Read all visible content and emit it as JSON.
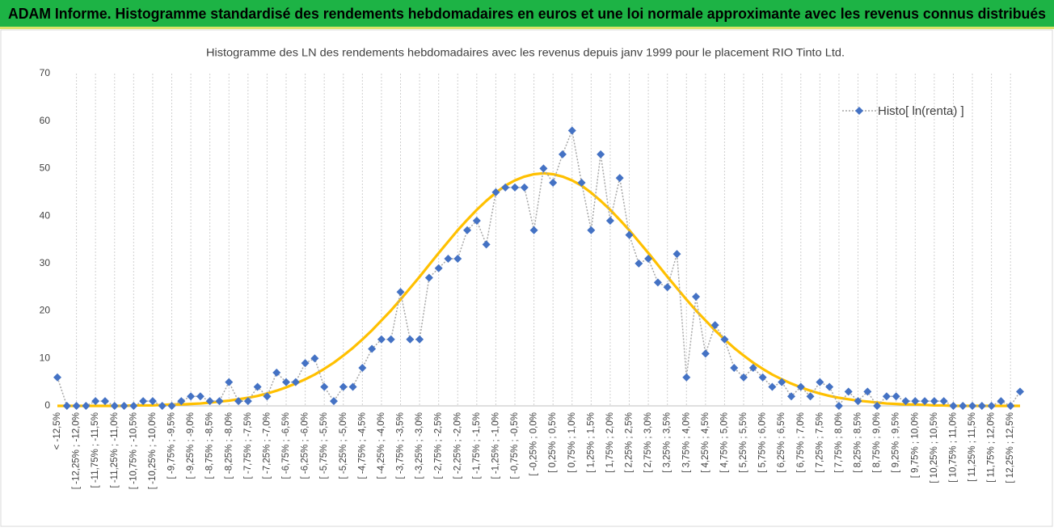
{
  "chart_data": {
    "type": "line",
    "header": "ADAM Informe. Histogramme standardisé des rendements hebdomadaires en euros et une loi normale approximante avec les revenus connus distribués",
    "title": "Histogramme des LN des rendements hebdomadaires avec les revenus depuis janv 1999 pour le placement RIO Tinto Ltd.",
    "categories": [
      "< -12,5%",
      null,
      "[ -12,25% ; -12,0%",
      null,
      "[ -11,75% ; -11,5%",
      null,
      "[ -11,25% ; -11,0%",
      null,
      "[ -10,75% ; -10,5%",
      null,
      "[ -10,25% ; -10,0%",
      null,
      "[ -9,75% ; -9,5%",
      null,
      "[ -9,25% ; -9,0%",
      null,
      "[ -8,75% ; -8,5%",
      null,
      "[ -8,25% ; -8,0%",
      null,
      "[ -7,75% ; -7,5%",
      null,
      "[ -7,25% ; -7,0%",
      null,
      "[ -6,75% ; -6,5%",
      null,
      "[ -6,25% ; -6,0%",
      null,
      "[ -5,75% ; -5,5%",
      null,
      "[ -5,25% ; -5,0%",
      null,
      "[ -4,75% ; -4,5%",
      null,
      "[ -4,25% ; -4,0%",
      null,
      "[ -3,75% ; -3,5%",
      null,
      "[ -3,25% ; -3,0%",
      null,
      "[ -2,75% ; -2,5%",
      null,
      "[ -2,25% ; -2,0%",
      null,
      "[ -1,75% ; -1,5%",
      null,
      "[ -1,25% ; -1,0%",
      null,
      "[ -0,75% ; -0,5%",
      null,
      "[ -0,25% ; 0,0%",
      null,
      "[ 0,25% ; 0,5%",
      null,
      "[ 0,75% ; 1,0%",
      null,
      "[ 1,25% ; 1,5%",
      null,
      "[ 1,75% ; 2,0%",
      null,
      "[ 2,25% ; 2,5%",
      null,
      "[ 2,75% ; 3,0%",
      null,
      "[ 3,25% ; 3,5%",
      null,
      "[ 3,75% ; 4,0%",
      null,
      "[ 4,25% ; 4,5%",
      null,
      "[ 4,75% ; 5,0%",
      null,
      "[ 5,25% ; 5,5%",
      null,
      "[ 5,75% ; 6,0%",
      null,
      "[ 6,25% ; 6,5%",
      null,
      "[ 6,75% ; 7,0%",
      null,
      "[ 7,25% ; 7,5%",
      null,
      "[ 7,75% ; 8,0%",
      null,
      "[ 8,25% ; 8,5%",
      null,
      "[ 8,75% ; 9,0%",
      null,
      "[ 9,25% ; 9,5%",
      null,
      "[ 9,75% ; 10,0%",
      null,
      "[ 10,25% ; 10,5%",
      null,
      "[ 10,75% ; 11,0%",
      null,
      "[ 11,25% ; 11,5%",
      null,
      "[ 11,75% ; 12,0%",
      null,
      "[ 12,25% ; 12,5%",
      null
    ],
    "series": [
      {
        "name": "Histo[ ln(renta) ]",
        "color": "#4472c4",
        "line_color": "#a6a6a6",
        "line": "dotted",
        "marker": "diamond",
        "values": [
          6,
          0,
          0,
          0,
          1,
          1,
          0,
          0,
          0,
          1,
          1,
          0,
          0,
          1,
          2,
          2,
          1,
          1,
          5,
          1,
          1,
          4,
          2,
          7,
          5,
          5,
          9,
          10,
          4,
          1,
          4,
          4,
          8,
          12,
          14,
          14,
          24,
          14,
          14,
          27,
          29,
          31,
          31,
          37,
          39,
          34,
          45,
          46,
          46,
          46,
          37,
          50,
          47,
          53,
          58,
          47,
          37,
          53,
          39,
          48,
          36,
          30,
          31,
          26,
          25,
          32,
          6,
          23,
          11,
          17,
          14,
          8,
          6,
          8,
          6,
          4,
          5,
          2,
          4,
          2,
          5,
          4,
          0,
          3,
          1,
          3,
          0,
          2,
          2,
          1,
          1,
          1,
          1,
          1,
          0,
          0,
          0,
          0,
          0,
          1,
          0,
          3
        ]
      },
      {
        "color": "#ffc000",
        "line": "solid",
        "marker": "none",
        "values": [
          0,
          0,
          0,
          0,
          0,
          0,
          0,
          0,
          0.1,
          0.1,
          0.1,
          0.2,
          0.3,
          0.3,
          0.4,
          0.5,
          0.7,
          0.9,
          1.1,
          1.4,
          1.7,
          2.1,
          2.6,
          3.2,
          3.9,
          4.7,
          5.6,
          6.6,
          7.8,
          9.1,
          10.6,
          12.2,
          14.0,
          15.9,
          18.0,
          20.1,
          22.4,
          24.8,
          27.2,
          29.7,
          32.2,
          34.6,
          37.0,
          39.2,
          41.3,
          43.2,
          44.9,
          46.4,
          47.5,
          48.3,
          48.8,
          49,
          48.8,
          48.3,
          47.5,
          46.4,
          44.9,
          43.2,
          41.3,
          39.2,
          37.0,
          34.6,
          32.2,
          29.7,
          27.2,
          24.8,
          22.4,
          20.1,
          18.0,
          15.9,
          14.0,
          12.2,
          10.6,
          9.1,
          7.8,
          6.6,
          5.6,
          4.7,
          3.9,
          3.2,
          2.6,
          2.1,
          1.7,
          1.4,
          1.1,
          0.9,
          0.7,
          0.5,
          0.4,
          0.3,
          0.3,
          0.2,
          0.1,
          0.1,
          0,
          0,
          0,
          0,
          0,
          0,
          0,
          0
        ]
      }
    ],
    "ylim": [
      0,
      70
    ],
    "yticks": [
      0,
      10,
      20,
      30,
      40,
      50,
      60,
      70
    ],
    "grid": "x",
    "legend": "top-right"
  }
}
